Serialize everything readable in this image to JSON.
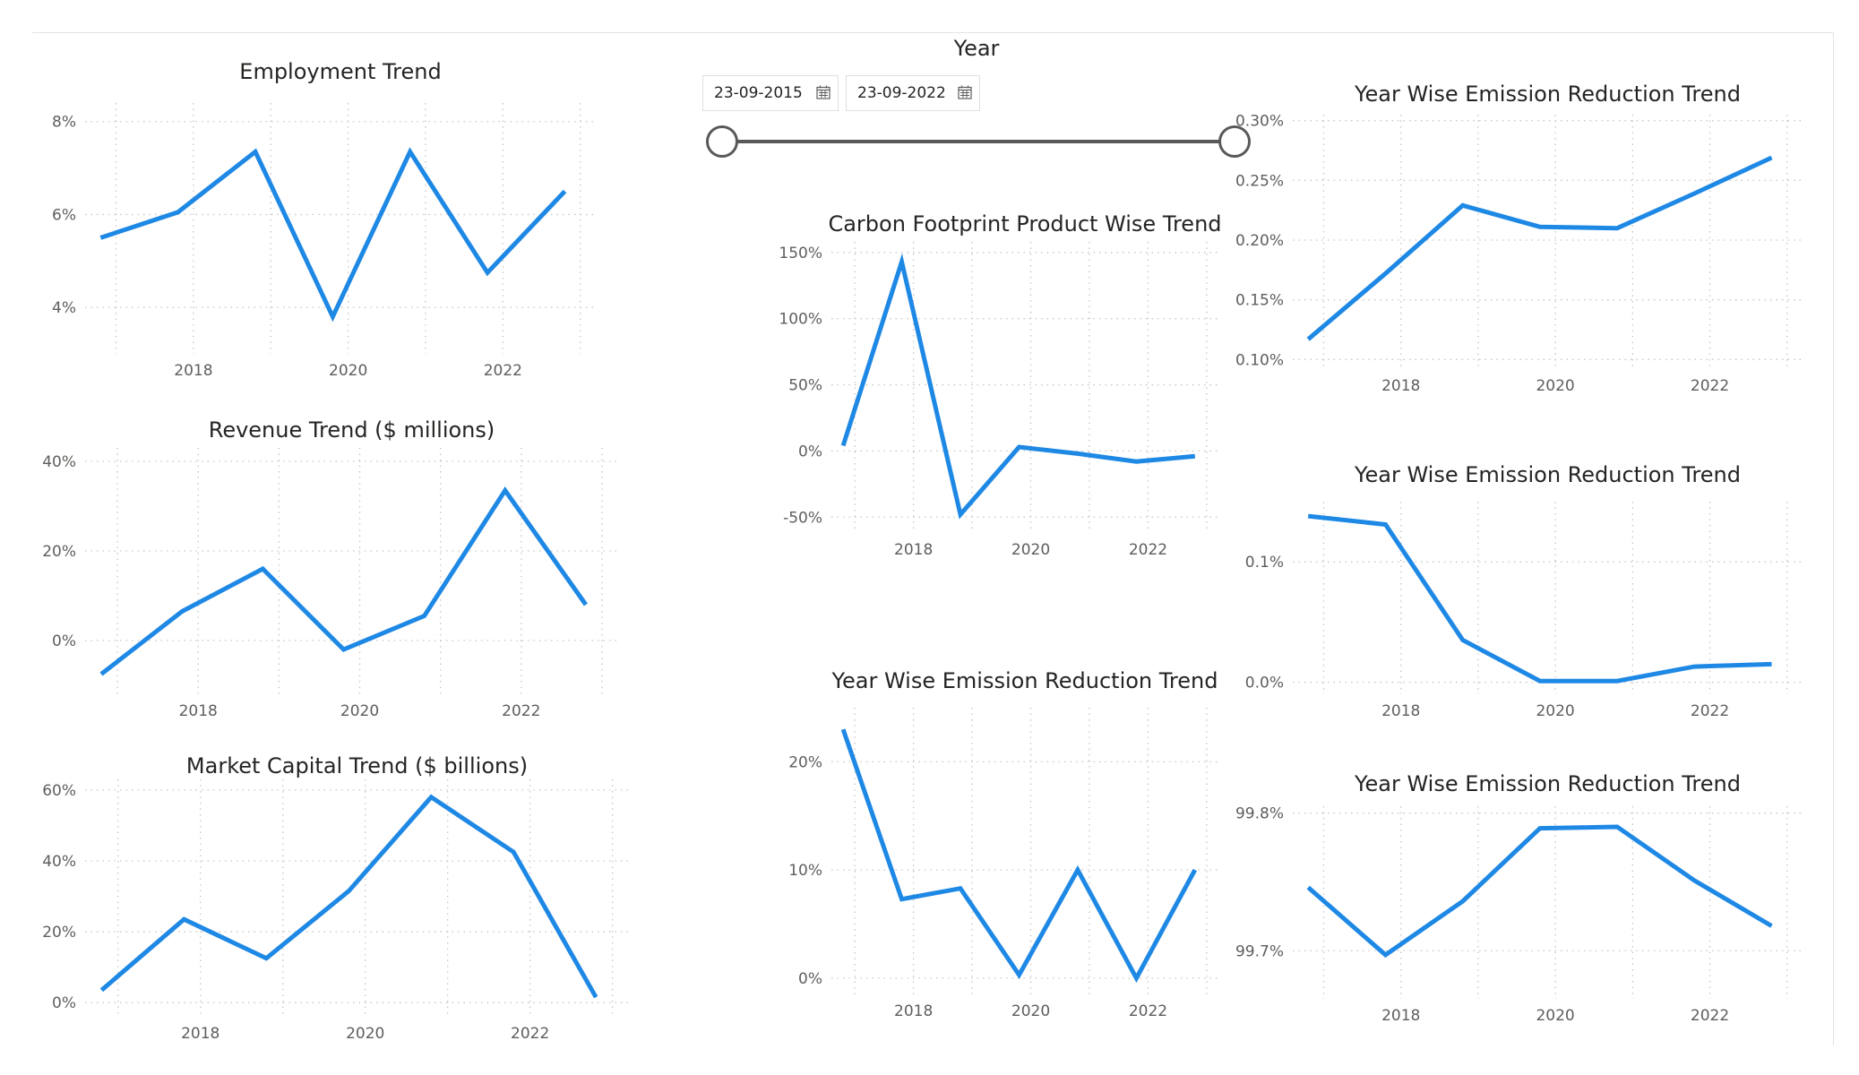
{
  "slicer": {
    "title": "Year",
    "start_date": "23-09-2015",
    "end_date": "23-09-2022",
    "start_icon": "calendar-icon",
    "end_icon": "calendar-icon"
  },
  "colors": {
    "series": "#1e88e5",
    "grid": "#c8c6c4",
    "axis_text": "#605e5c",
    "title_text": "#252423"
  },
  "chart_data": [
    {
      "id": "employment",
      "type": "line",
      "title": "Employment Trend",
      "x": [
        2016.8,
        2017.8,
        2018.8,
        2019.8,
        2020.8,
        2021.8,
        2022.8
      ],
      "values": [
        5.5,
        6.05,
        7.35,
        3.8,
        7.35,
        4.75,
        6.5
      ],
      "ylim": [
        3,
        8.4
      ],
      "yticks": [
        4,
        6,
        8
      ],
      "ytick_labels": [
        "4%",
        "6%",
        "8%"
      ],
      "xlim": [
        2016.6,
        2023.2
      ],
      "xticks": [
        2018,
        2020,
        2022
      ],
      "xtick_labels": [
        "2018",
        "2020",
        "2022"
      ],
      "grid": true
    },
    {
      "id": "revenue",
      "type": "line",
      "title": "Revenue Trend ($ millions)",
      "x": [
        2016.8,
        2017.8,
        2018.8,
        2019.8,
        2020.8,
        2021.8,
        2022.8
      ],
      "values": [
        -7.5,
        6.5,
        16,
        -2,
        5.5,
        33.5,
        8
      ],
      "ylim": [
        -12,
        43
      ],
      "yticks": [
        0,
        20,
        40
      ],
      "ytick_labels": [
        "0%",
        "20%",
        "40%"
      ],
      "xlim": [
        2016.6,
        2023.2
      ],
      "xticks": [
        2018,
        2020,
        2022
      ],
      "xtick_labels": [
        "2018",
        "2020",
        "2022"
      ],
      "grid": true
    },
    {
      "id": "market-capital",
      "type": "line",
      "title": "Market Capital Trend ($ billions)",
      "x": [
        2016.8,
        2017.8,
        2018.8,
        2019.8,
        2020.8,
        2021.8,
        2022.8
      ],
      "values": [
        3.5,
        23.5,
        12.5,
        31.5,
        58,
        42.5,
        1.5
      ],
      "ylim": [
        -4,
        63
      ],
      "yticks": [
        0,
        20,
        40,
        60
      ],
      "ytick_labels": [
        "0%",
        "20%",
        "40%",
        "60%"
      ],
      "xlim": [
        2016.6,
        2023.2
      ],
      "xticks": [
        2018,
        2020,
        2022
      ],
      "xtick_labels": [
        "2018",
        "2020",
        "2022"
      ],
      "grid": true
    },
    {
      "id": "carbon-footprint",
      "type": "line",
      "title": "Carbon Footprint Product Wise Trend",
      "x": [
        2016.8,
        2017.8,
        2018.8,
        2019.8,
        2020.8,
        2021.8,
        2022.8
      ],
      "values": [
        4,
        143,
        -48,
        3,
        -2,
        -8,
        -4
      ],
      "ylim": [
        -62,
        158
      ],
      "yticks": [
        -50,
        0,
        50,
        100,
        150
      ],
      "ytick_labels": [
        "-50%",
        "0%",
        "50%",
        "100%",
        "150%"
      ],
      "xlim": [
        2016.6,
        2023.2
      ],
      "xticks": [
        2018,
        2020,
        2022
      ],
      "xtick_labels": [
        "2018",
        "2020",
        "2022"
      ],
      "grid": true
    },
    {
      "id": "emission-middle",
      "type": "line",
      "title": "Year Wise Emission Reduction Trend",
      "x": [
        2016.8,
        2017.8,
        2018.8,
        2019.8,
        2020.8,
        2021.8,
        2022.8
      ],
      "values": [
        23,
        7.3,
        8.3,
        0.3,
        10,
        0,
        10
      ],
      "ylim": [
        -1.5,
        25
      ],
      "yticks": [
        0,
        10,
        20
      ],
      "ytick_labels": [
        "0%",
        "10%",
        "20%"
      ],
      "xlim": [
        2016.6,
        2023.2
      ],
      "xticks": [
        2018,
        2020,
        2022
      ],
      "xtick_labels": [
        "2018",
        "2020",
        "2022"
      ],
      "grid": true
    },
    {
      "id": "emission-right-top",
      "type": "line",
      "title": "Year Wise Emission Reduction Trend",
      "x": [
        2016.8,
        2017.8,
        2018.8,
        2019.8,
        2020.8,
        2021.8,
        2022.8
      ],
      "values": [
        0.117,
        0.172,
        0.229,
        0.211,
        0.21,
        0.239,
        0.269
      ],
      "ylim": [
        0.092,
        0.305
      ],
      "yticks": [
        0.1,
        0.15,
        0.2,
        0.25,
        0.3
      ],
      "ytick_labels": [
        "0.10%",
        "0.15%",
        "0.20%",
        "0.25%",
        "0.30%"
      ],
      "xlim": [
        2016.6,
        2023.2
      ],
      "xticks": [
        2018,
        2020,
        2022
      ],
      "xtick_labels": [
        "2018",
        "2020",
        "2022"
      ],
      "grid": true
    },
    {
      "id": "emission-right-middle",
      "type": "line",
      "title": "Year Wise Emission Reduction Trend",
      "x": [
        2016.8,
        2017.8,
        2018.8,
        2019.8,
        2020.8,
        2021.8,
        2022.8
      ],
      "values": [
        0.138,
        0.131,
        0.035,
        0.001,
        0.001,
        0.013,
        0.015
      ],
      "ylim": [
        -0.01,
        0.15
      ],
      "yticks": [
        0,
        0.1
      ],
      "ytick_labels": [
        "0.0%",
        "0.1%"
      ],
      "xlim": [
        2016.6,
        2023.2
      ],
      "xticks": [
        2018,
        2020,
        2022
      ],
      "xtick_labels": [
        "2018",
        "2020",
        "2022"
      ],
      "grid": true
    },
    {
      "id": "emission-right-bottom",
      "type": "line",
      "title": "Year Wise Emission Reduction Trend",
      "x": [
        2016.8,
        2017.8,
        2018.8,
        2019.8,
        2020.8,
        2021.8,
        2022.8
      ],
      "values": [
        99.746,
        99.697,
        99.736,
        99.789,
        99.79,
        99.751,
        99.718
      ],
      "ylim": [
        99.665,
        99.805
      ],
      "yticks": [
        99.7,
        99.8
      ],
      "ytick_labels": [
        "99.7%",
        "99.8%"
      ],
      "xlim": [
        2016.6,
        2023.2
      ],
      "xticks": [
        2018,
        2020,
        2022
      ],
      "xtick_labels": [
        "2018",
        "2020",
        "2022"
      ],
      "grid": true
    }
  ]
}
